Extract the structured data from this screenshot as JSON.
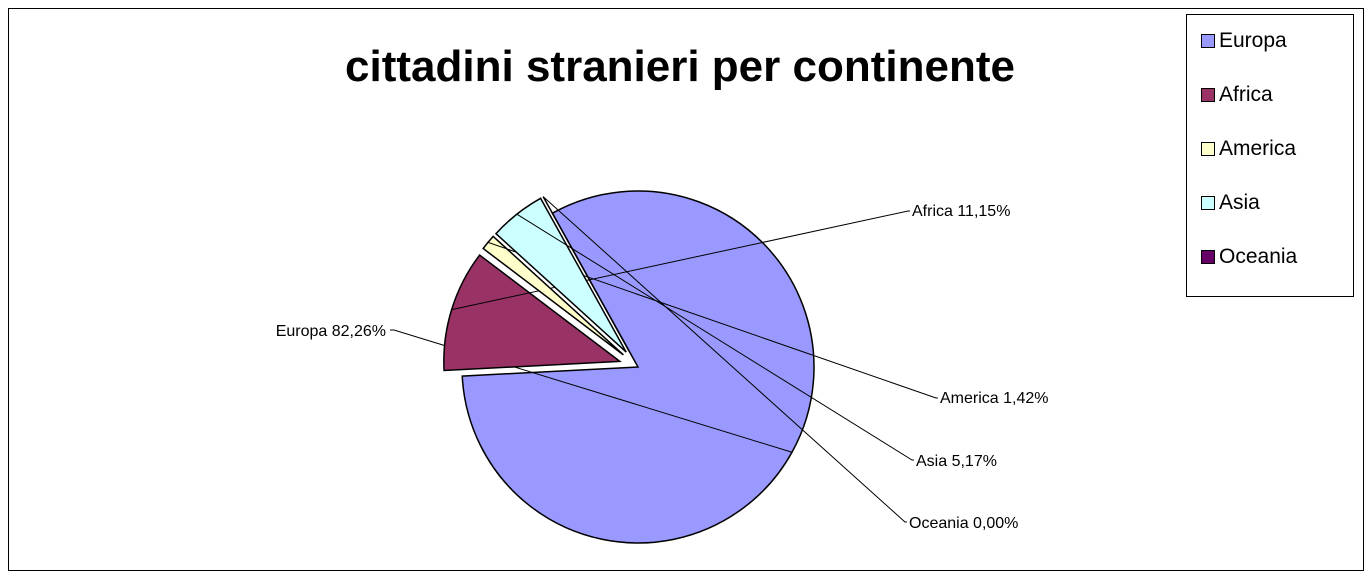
{
  "chart_data": {
    "type": "pie",
    "title": "cittadini stranieri per continente",
    "categories": [
      "Europa",
      "Africa",
      "America",
      "Asia",
      "Oceania"
    ],
    "values": [
      82.26,
      11.15,
      1.42,
      5.17,
      0.0
    ],
    "data_labels": [
      "Europa 82,26%",
      "Africa 11,15%",
      "America 1,42%",
      "Asia 5,17%",
      "Oceania 0,00%"
    ],
    "colors": [
      "#9999ff",
      "#993366",
      "#ffffcc",
      "#ccffff",
      "#660066"
    ],
    "exploded_slices": [
      "Africa",
      "America",
      "Asia",
      "Oceania"
    ],
    "legend_position": "top-right",
    "grid": false
  }
}
